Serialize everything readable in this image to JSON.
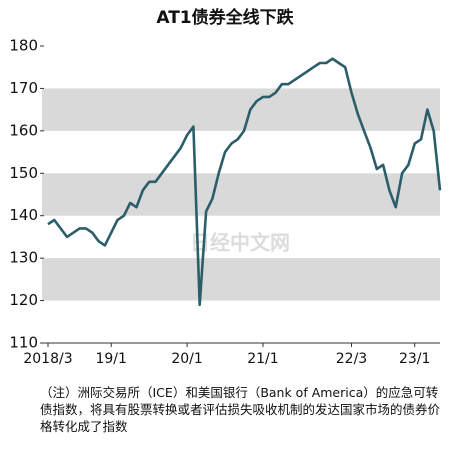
{
  "chart_data": {
    "type": "line",
    "title": "AT1债券全线下跌",
    "x": [
      "2018-03",
      "2018-04",
      "2018-05",
      "2018-06",
      "2018-07",
      "2018-08",
      "2018-09",
      "2018-10",
      "2018-11",
      "2018-12",
      "2019-01",
      "2019-02",
      "2019-03",
      "2019-04",
      "2019-05",
      "2019-06",
      "2019-07",
      "2019-08",
      "2019-09",
      "2019-10",
      "2019-11",
      "2019-12",
      "2020-01",
      "2020-02",
      "2020-03",
      "2020-04",
      "2020-05",
      "2020-06",
      "2020-07",
      "2020-08",
      "2020-09",
      "2020-10",
      "2020-11",
      "2020-12",
      "2021-01",
      "2021-02",
      "2021-03",
      "2021-04",
      "2021-05",
      "2021-06",
      "2021-07",
      "2021-08",
      "2021-09",
      "2021-10",
      "2021-11",
      "2021-12",
      "2022-01",
      "2022-02",
      "2022-03",
      "2022-04",
      "2022-05",
      "2022-06",
      "2022-07",
      "2022-08",
      "2022-09",
      "2022-10",
      "2022-11",
      "2022-12",
      "2023-01",
      "2023-02",
      "2023-03",
      "2023-04",
      "2023-05"
    ],
    "series": [
      {
        "color": "#2b5d6b",
        "values": [
          138,
          139,
          137,
          135,
          136,
          137,
          137,
          136,
          134,
          133,
          136,
          139,
          140,
          143,
          142,
          146,
          148,
          148,
          150,
          152,
          154,
          156,
          159,
          161,
          119,
          141,
          144,
          150,
          155,
          157,
          158,
          160,
          165,
          167,
          168,
          168,
          169,
          171,
          171,
          172,
          173,
          174,
          175,
          176,
          176,
          177,
          176,
          175,
          169,
          164,
          160,
          156,
          151,
          152,
          146,
          142,
          150,
          152,
          157,
          158,
          165,
          160,
          146
        ]
      }
    ],
    "xlim": [
      "2018-03",
      "2023-05"
    ],
    "xticks": [
      {
        "value": "2018-03",
        "label": "2018/3"
      },
      {
        "value": "2019-01",
        "label": "19/1"
      },
      {
        "value": "2020-01",
        "label": "20/1"
      },
      {
        "value": "2021-01",
        "label": "21/1"
      },
      {
        "value": "2022-03",
        "label": "22/3"
      },
      {
        "value": "2023-01",
        "label": "23/1"
      }
    ],
    "ylim": [
      110,
      180
    ],
    "yticks": [
      110,
      120,
      130,
      140,
      150,
      160,
      170,
      180
    ],
    "watermark": "日经中文网",
    "note": "（注）洲际交易所（ICE）和美国银行（Bank of America）的应急可转债指数，将具有股票转换或者评估损失吸收机制的发达国家市场的债券价格转化成了指数"
  }
}
